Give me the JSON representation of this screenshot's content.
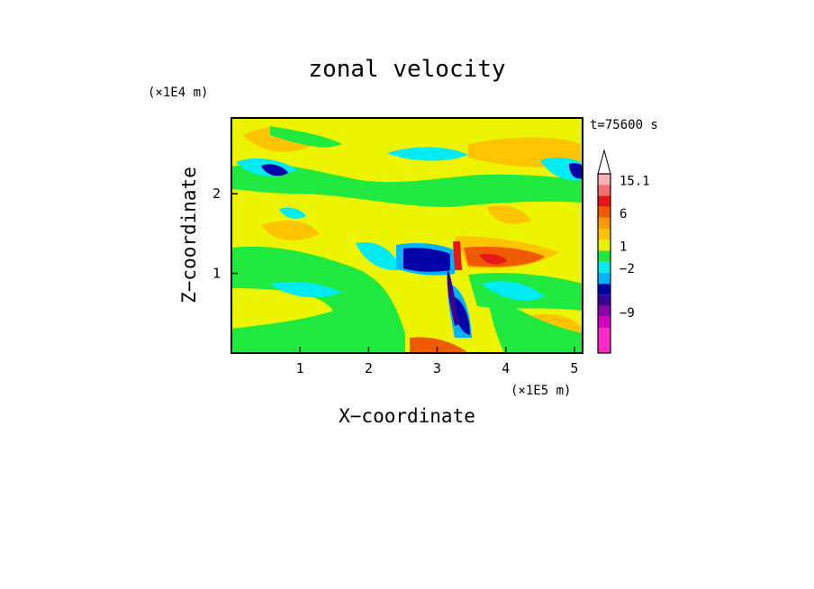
{
  "chart_data": {
    "type": "heatmap",
    "title": "zonal velocity",
    "xlabel": "X−coordinate",
    "ylabel": "Z−coordinate",
    "x_unit": "(×1E5 m)",
    "y_unit": "(×1E4 m)",
    "time_label": "t=75600 s",
    "xlim": [
      0,
      5.12
    ],
    "ylim": [
      0,
      2.95
    ],
    "x_ticks": [
      "1",
      "2",
      "3",
      "4",
      "5"
    ],
    "y_ticks": [
      "1",
      "2"
    ],
    "colorbar": {
      "labels": [
        "15.1",
        "6",
        "1",
        "−2",
        "−9"
      ],
      "levels_colors": [
        "#ffb0b0",
        "#f07070",
        "#e81818",
        "#f05a00",
        "#ff9800",
        "#ffc400",
        "#e8f000",
        "#20ea40",
        "#00ecf4",
        "#00b4ff",
        "#0000a8",
        "#3c0096",
        "#8c00a8",
        "#d400c0"
      ],
      "top": "#ffffff",
      "bottom": "#ff2ac8"
    },
    "colors": {
      "background_field": "#edf400",
      "light_orange": "#ffc400",
      "green": "#20ea40",
      "cyan": "#00ecf4",
      "blue": "#00b4ff",
      "navy": "#0000a8",
      "orange": "#f05a00",
      "red": "#e81818",
      "purple": "#3c0096"
    }
  }
}
